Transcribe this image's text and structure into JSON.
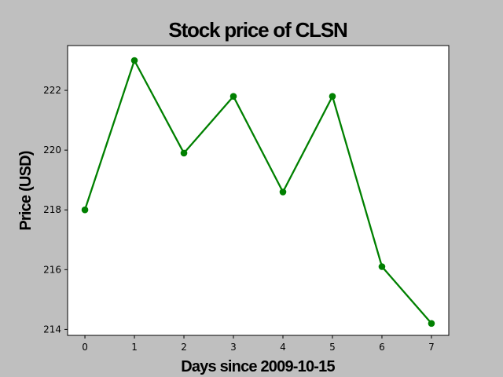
{
  "chart_data": {
    "type": "line",
    "title": "Stock price of CLSN",
    "xlabel": "Days since 2009-10-15",
    "ylabel": "Price (USD)",
    "x": [
      0,
      1,
      2,
      3,
      4,
      5,
      6,
      7
    ],
    "series": [
      {
        "values": [
          218.0,
          223.0,
          219.9,
          221.8,
          218.6,
          221.8,
          216.1,
          214.2
        ],
        "color": "#008000",
        "marker": "circle"
      }
    ],
    "xlim": [
      -0.35,
      7.35
    ],
    "ylim": [
      213.8,
      223.5
    ],
    "xticks": [
      0,
      1,
      2,
      3,
      4,
      5,
      6,
      7
    ],
    "yticks": [
      214,
      216,
      218,
      220,
      222
    ],
    "grid": false,
    "legend": "none"
  }
}
